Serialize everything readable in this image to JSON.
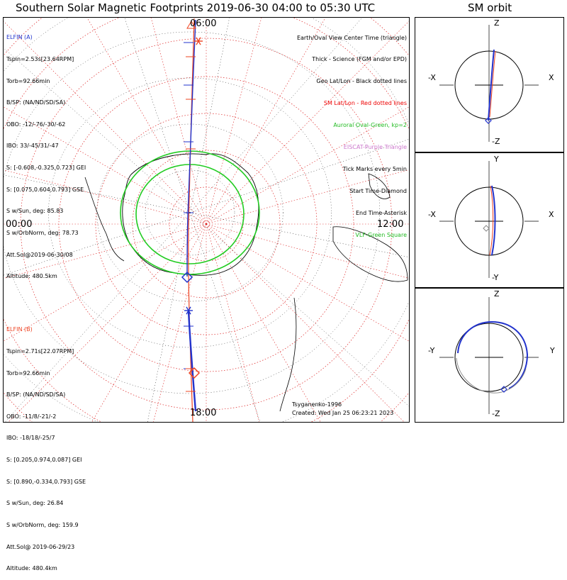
{
  "main_title": "Southern Solar Magnetic Footprints 2019-06-30 04:00 to 05:30 UTC",
  "orbit_title": "SM orbit",
  "mlt_labels": {
    "top": "06:00",
    "bottom": "18:00",
    "left": "00:00",
    "right": "12:00"
  },
  "elfin_a": {
    "name": "ELFIN (A)",
    "color": "#2233cc",
    "lines": [
      "Tspin=2.53s[23.64RPM]",
      "Torb=92.66min",
      "B/SP: (NA/ND/SD/SA)",
      "OBO: -12/-76/-30/-62",
      "IBO: 33/-45/31/-47",
      "S: [-0.608,-0.325,0.723] GEI",
      "S: [0.075,0.604,0.793] GSE",
      "S w/Sun, deg: 85.83",
      "S w/OrbNorm, deg: 78.73",
      "Att.Sol@2019-06-30/08",
      "Altitude: 480.5km"
    ]
  },
  "elfin_b": {
    "name": "ELFIN (B)",
    "color": "#ee4422",
    "lines": [
      "Tspin=2.71s[22.07RPM]",
      "Torb=92.66min",
      "B/SP: (NA/ND/SD/SA)",
      "OBO: -11/8/-21/-2",
      "IBO: -18/18/-25/7",
      "S: [0.205,0.974,0.087] GEI",
      "S: [0.890,-0.334,0.793] GSE",
      "S w/Sun, deg: 26.84",
      "S w/OrbNorm, deg: 159.9",
      "Att.Sol@ 2019-06-29/23",
      "Altitude: 480.4km"
    ]
  },
  "legend": [
    {
      "text": "Earth/Oval View Center Time (triangle)",
      "color": "#000000"
    },
    {
      "text": "Thick - Science (FGM and/or EPD)",
      "color": "#000000"
    },
    {
      "text": "Geo Lat/Lon - Black dotted lines",
      "color": "#000000"
    },
    {
      "text": "SM Lat/Lon - Red dotted lines",
      "color": "#ee0000"
    },
    {
      "text": "Auroral Oval-Green, kp=2",
      "color": "#22bb22"
    },
    {
      "text": "EISCAT-Purple Triangle",
      "color": "#cc77cc"
    },
    {
      "text": "Tick Marks every 5min",
      "color": "#000000"
    },
    {
      "text": "Start Time-Diamond",
      "color": "#000000"
    },
    {
      "text": "End Time-Asterisk",
      "color": "#000000"
    },
    {
      "text": "VLF-Green Square",
      "color": "#22bb22"
    }
  ],
  "credits": {
    "model": "Tsyganenko-1996",
    "created": "Created: Wed Jan 25 06:23:21 2023"
  },
  "orbit_panels": [
    {
      "top": "Z",
      "bottom": "-Z",
      "left": "-X",
      "right": "X"
    },
    {
      "top": "Y",
      "bottom": "-Y",
      "left": "-X",
      "right": "X"
    },
    {
      "top": "Z",
      "bottom": "-Z",
      "left": "-Y",
      "right": "Y"
    }
  ],
  "chart_data": {
    "type": "polar-map",
    "projection": "southern hemisphere, SM coordinates",
    "series": [
      {
        "name": "ELFIN (A)",
        "color": "#2233cc"
      },
      {
        "name": "ELFIN (B)",
        "color": "#ee4422"
      }
    ],
    "auroral_oval_kp": 2,
    "colors": {
      "sm_grid": "#dd2222",
      "geo_grid": "#000000",
      "oval": "#22cc22"
    }
  }
}
